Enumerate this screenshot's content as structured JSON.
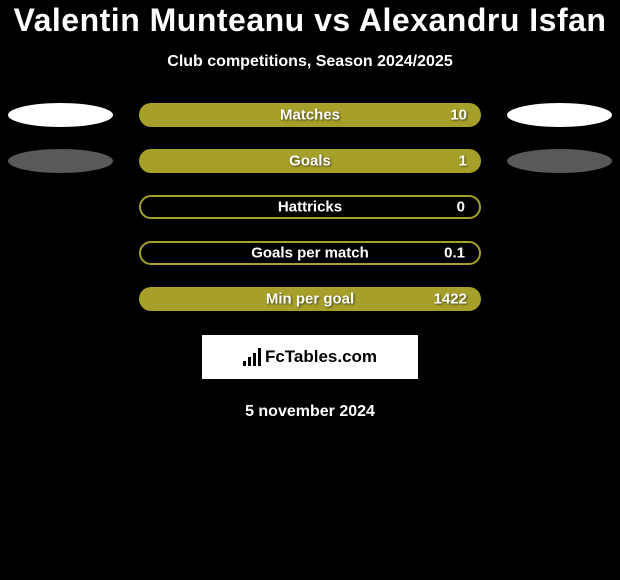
{
  "title": "Valentin Munteanu vs Alexandru Isfan",
  "subtitle": "Club competitions, Season 2024/2025",
  "date": "5 november 2024",
  "brand": "FcTables.com",
  "bar_color_fill": "#a6a02b",
  "bar_color_outline": "#a6a02b",
  "ellipse_color": "#ffffff",
  "stats": [
    {
      "label": "Matches",
      "value": "10",
      "filled": true,
      "show_ellipses": true,
      "ellipse_faded": false
    },
    {
      "label": "Goals",
      "value": "1",
      "filled": true,
      "show_ellipses": true,
      "ellipse_faded": true
    },
    {
      "label": "Hattricks",
      "value": "0",
      "filled": false,
      "show_ellipses": false,
      "ellipse_faded": false
    },
    {
      "label": "Goals per match",
      "value": "0.1",
      "filled": false,
      "show_ellipses": false,
      "ellipse_faded": false
    },
    {
      "label": "Min per goal",
      "value": "1422",
      "filled": true,
      "show_ellipses": false,
      "ellipse_faded": false
    }
  ]
}
